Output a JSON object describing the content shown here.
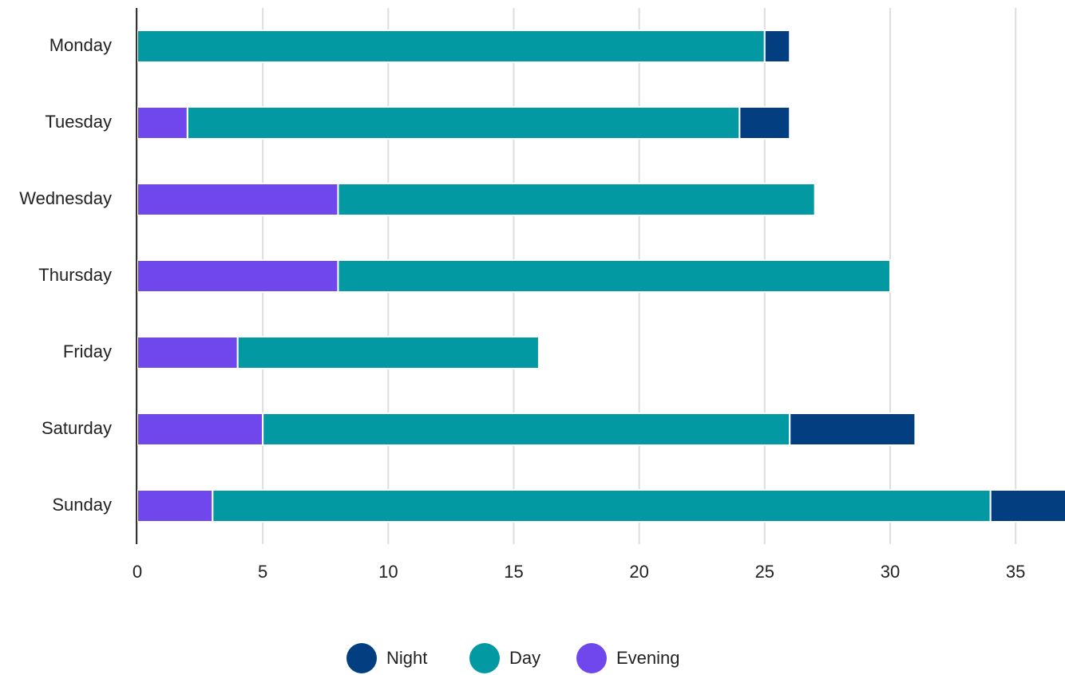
{
  "chart_data": {
    "type": "stacked_bar_horizontal",
    "categories": [
      "Monday",
      "Tuesday",
      "Wednesday",
      "Thursday",
      "Friday",
      "Saturday",
      "Sunday"
    ],
    "series": [
      {
        "name": "Evening",
        "color": "#6f47ec",
        "values": [
          0,
          2,
          8,
          8,
          4,
          5,
          3
        ]
      },
      {
        "name": "Day",
        "color": "#0399a3",
        "values": [
          25,
          22,
          19,
          22,
          12,
          21,
          31
        ]
      },
      {
        "name": "Night",
        "color": "#033f80",
        "values": [
          1,
          2,
          0,
          0,
          0,
          5,
          3
        ]
      }
    ],
    "legend_order": [
      "Night",
      "Day",
      "Evening"
    ],
    "xlim": [
      0,
      37
    ],
    "xticks": [
      0,
      5,
      10,
      15,
      20,
      25,
      30,
      35
    ],
    "grid": true,
    "legend": "bottom"
  }
}
